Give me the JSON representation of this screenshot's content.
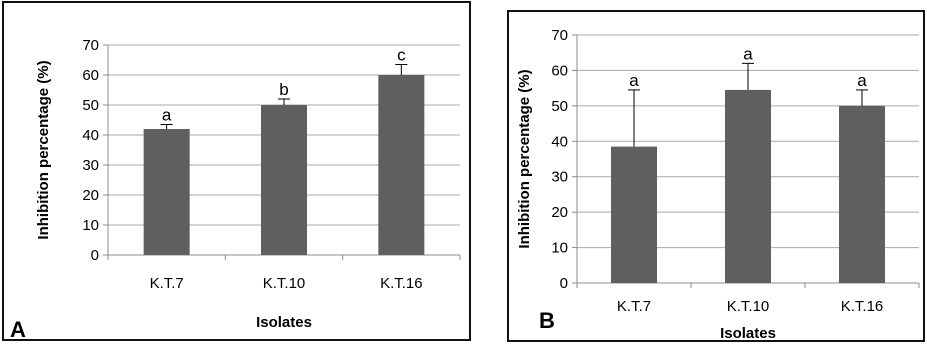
{
  "chart_data": [
    {
      "type": "bar",
      "panel_label": "A",
      "categories": [
        "K.T.7",
        "K.T.10",
        "K.T.16"
      ],
      "values": [
        42,
        50,
        60
      ],
      "errors": [
        1.5,
        2,
        3.5
      ],
      "significance": [
        "a",
        "b",
        "c"
      ],
      "xlabel": "Isolates",
      "ylabel": "Inhibition percentage (%)",
      "ylim": [
        0,
        70
      ],
      "yticks": [
        "0",
        "10",
        "20",
        "30",
        "40",
        "50",
        "60",
        "70"
      ],
      "grid": true,
      "bar_color": "#5f5f5f"
    },
    {
      "type": "bar",
      "panel_label": "B",
      "categories": [
        "K.T.7",
        "K.T.10",
        "K.T.16"
      ],
      "values": [
        38.5,
        54.5,
        50
      ],
      "errors": [
        16,
        7.5,
        4.5
      ],
      "significance": [
        "a",
        "a",
        "a"
      ],
      "xlabel": "Isolates",
      "ylabel": "Inhibition percentage  (%)",
      "ylim": [
        0,
        70
      ],
      "yticks": [
        "0",
        "10",
        "20",
        "30",
        "40",
        "50",
        "60",
        "70"
      ],
      "grid": true,
      "bar_color": "#5f5f5f"
    }
  ]
}
